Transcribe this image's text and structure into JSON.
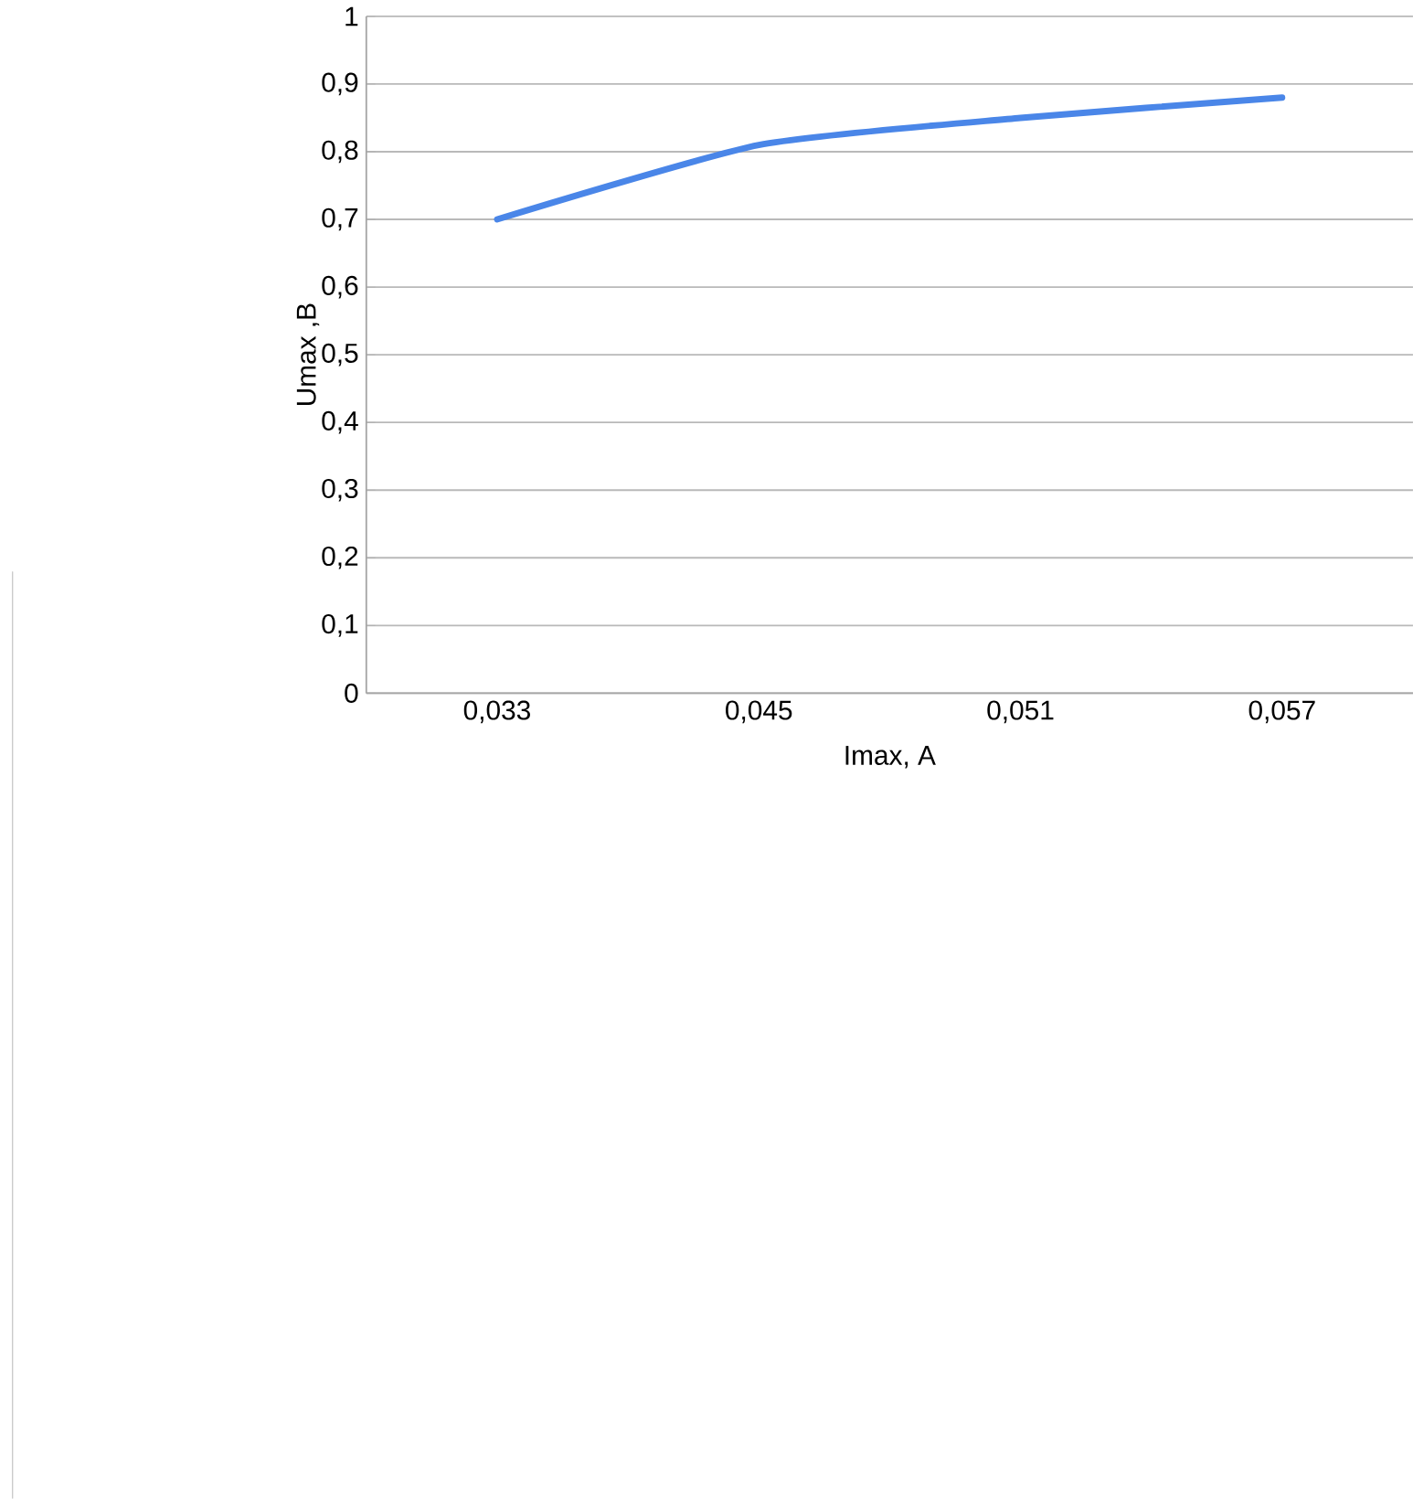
{
  "chart_data": {
    "type": "line",
    "xlabel": "Imax, A",
    "ylabel": "Umax ,B",
    "categories": [
      "0,033",
      "0,045",
      "0,051",
      "0,057"
    ],
    "series": [
      {
        "color": "#4a86e8",
        "values": [
          0.7,
          0.81,
          0.85,
          0.88
        ]
      }
    ],
    "ylim": [
      0,
      1
    ],
    "yticks": [
      0,
      {
        "value": 0.1,
        "label": "0,1"
      },
      {
        "value": 0.2,
        "label": "0,2"
      },
      {
        "value": 0.3,
        "label": "0,3"
      },
      {
        "value": 0.4,
        "label": "0,4"
      },
      {
        "value": 0.5,
        "label": "0,5"
      },
      {
        "value": 0.6,
        "label": "0,6"
      },
      {
        "value": 0.7,
        "label": "0,7"
      },
      {
        "value": 0.8,
        "label": "0,8"
      },
      {
        "value": 0.9,
        "label": "0,9"
      },
      1
    ],
    "grid": "y",
    "line_style": "solid"
  }
}
